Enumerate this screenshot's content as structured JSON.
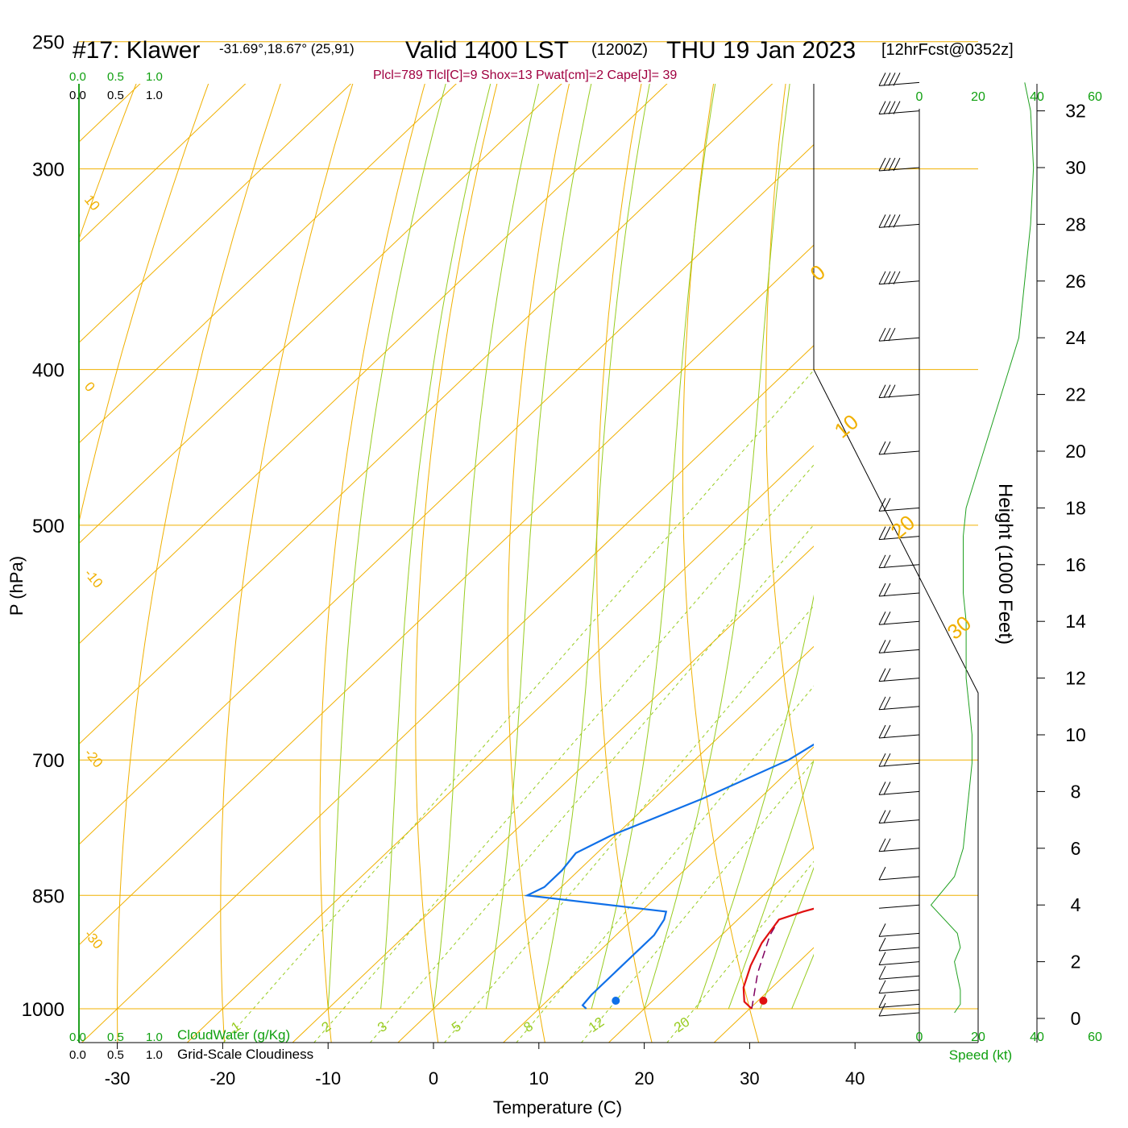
{
  "header": {
    "station": "#17: Klawer",
    "location": "-31.69°,18.67° (25,91)",
    "valid": "Valid 1400 LST",
    "utc": "(1200Z)",
    "date": "THU 19 Jan 2023",
    "forecast": "[12hrFcst@0352z]",
    "indices": "Plcl=789 Tlcl[C]=9 Shox=13 Pwat[cm]=2 Cape[J]= 39"
  },
  "colors": {
    "temperature": "#e01010",
    "dewpoint": "#1070e8",
    "isotherm": "#f0b000",
    "moist_adiabat": "#98cc20",
    "mixing_ratio": "#98cc20",
    "green_text": "#10a010",
    "indices": "#a00040",
    "parcel": "#800060"
  },
  "labels": {
    "ylabel": "P (hPa)",
    "xlabel": "Temperature (C)",
    "height_label": "Height (1000 Feet)",
    "speed_label": "Speed (kt)",
    "cloudwater_label": "CloudWater (g/Kg)",
    "cloudiness_label": "Grid-Scale Cloudiness",
    "cloud_scale": [
      "0.0",
      "0.5",
      "1.0"
    ],
    "speed_ticks": [
      "0",
      "20",
      "40",
      "60"
    ]
  },
  "chart_data": {
    "type": "line",
    "title": "#17: Klawer Valid 1400 LST (1200Z) THU 19 Jan 2023",
    "xlabel": "Temperature (C)",
    "ylabel": "P (hPa)",
    "xlim": [
      -35,
      45
    ],
    "ylim": [
      1050,
      250
    ],
    "y_scale": "log",
    "x_ticks": [
      -30,
      -20,
      -10,
      0,
      10,
      20,
      30,
      40
    ],
    "pressure_ticks": [
      250,
      300,
      400,
      500,
      700,
      850,
      1000
    ],
    "height_ticks_kft": [
      0,
      2,
      4,
      6,
      8,
      10,
      12,
      14,
      16,
      18,
      20,
      22,
      24,
      26,
      28,
      30,
      32
    ],
    "isotherm_labels": [
      -30,
      -20,
      -10,
      0,
      10,
      20,
      30
    ],
    "isotherm_labels_right": [
      0,
      10,
      20,
      30
    ],
    "isotherm_labels_top": [
      10
    ],
    "mixing_ratio_labels": [
      "1",
      "2",
      "3",
      "5",
      "8",
      "12",
      "20"
    ],
    "series": [
      {
        "name": "Temperature",
        "points": [
          [
            1000,
            30.2
          ],
          [
            990,
            28.8
          ],
          [
            970,
            27.3
          ],
          [
            940,
            25.8
          ],
          [
            910,
            24.6
          ],
          [
            880,
            23.9
          ],
          [
            870,
            25.4
          ],
          [
            860,
            27.4
          ],
          [
            820,
            27.2
          ],
          [
            790,
            26.7
          ],
          [
            740,
            24.4
          ],
          [
            700,
            22.8
          ],
          [
            650,
            20.3
          ],
          [
            620,
            19.6
          ],
          [
            600,
            19.3
          ],
          [
            560,
            19.0
          ],
          [
            530,
            18.7
          ],
          [
            500,
            17.7
          ],
          [
            450,
            15.8
          ],
          [
            420,
            14.6
          ],
          [
            400,
            13.3
          ],
          [
            360,
            10.8
          ],
          [
            330,
            8.7
          ],
          [
            300,
            6.5
          ],
          [
            270,
            3.8
          ],
          [
            260,
            2.7
          ]
        ]
      },
      {
        "name": "Dewpoint",
        "points": [
          [
            1000,
            14.5
          ],
          [
            995,
            13.8
          ],
          [
            980,
            13.6
          ],
          [
            940,
            13.6
          ],
          [
            900,
            13.6
          ],
          [
            880,
            13.0
          ],
          [
            870,
            12.4
          ],
          [
            850,
            -2.4
          ],
          [
            840,
            -1.6
          ],
          [
            820,
            -1.6
          ],
          [
            800,
            -2.0
          ],
          [
            780,
            -0.4
          ],
          [
            740,
            4.6
          ],
          [
            700,
            8.9
          ],
          [
            670,
            10.6
          ],
          [
            650,
            9.9
          ],
          [
            580,
            0.3
          ],
          [
            545,
            4.9
          ],
          [
            500,
            7.1
          ],
          [
            440,
            -0.5
          ],
          [
            390,
            -5.0
          ],
          [
            370,
            -6.6
          ],
          [
            350,
            -9.6
          ],
          [
            340,
            -9.9
          ],
          [
            310,
            -9.2
          ],
          [
            280,
            -9.5
          ],
          [
            270,
            -9.2
          ],
          [
            260,
            -8.6
          ]
        ]
      },
      {
        "name": "Parcel",
        "points": [
          [
            1000,
            30.2
          ],
          [
            950,
            27.2
          ],
          [
            900,
            24.6
          ],
          [
            880,
            23.9
          ]
        ]
      }
    ],
    "surface_points": {
      "temperature": 31.3,
      "dewpoint": 17.3
    },
    "wind_profile": {
      "heights_kft": [
        0.2,
        0.5,
        1.0,
        1.5,
        2.0,
        2.5,
        3.0,
        4.0,
        5.0,
        6.0,
        7.0,
        8.0,
        9.0,
        10.0,
        11.0,
        12.0,
        13.0,
        14.0,
        15.0,
        16.0,
        17.0,
        18.0,
        20.0,
        22.0,
        24.0,
        26.0,
        28.0,
        30.0,
        32.0,
        33.0
      ],
      "speed_kt": [
        12,
        14,
        14,
        13,
        12,
        14,
        13,
        4,
        12,
        15,
        16,
        17,
        18,
        18,
        17,
        16,
        16,
        16,
        15,
        15,
        15,
        16,
        22,
        28,
        34,
        36,
        38,
        39,
        38,
        36
      ],
      "speed_xlim": [
        0,
        60
      ]
    }
  }
}
